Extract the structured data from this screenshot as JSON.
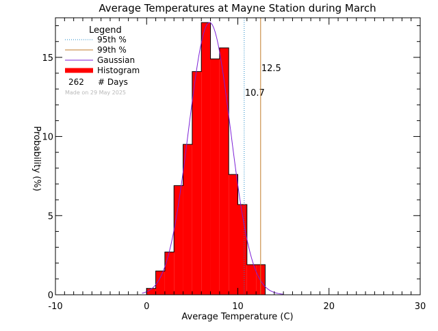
{
  "chart_data": {
    "type": "bar",
    "title": "Average Temperatures at Mayne Station during March",
    "xlabel": "Average Temperature (C)",
    "ylabel": "Probability (%)",
    "xlim": [
      -10,
      30
    ],
    "ylim": [
      0,
      17.5
    ],
    "x_ticks": [
      "-10",
      "0",
      "10",
      "20",
      "30"
    ],
    "y_ticks": [
      "0",
      "5",
      "10",
      "15"
    ],
    "bin_width": 1,
    "bins": [
      {
        "x0": 0,
        "value": 0.4
      },
      {
        "x0": 1,
        "value": 1.5
      },
      {
        "x0": 2,
        "value": 2.7
      },
      {
        "x0": 3,
        "value": 6.9
      },
      {
        "x0": 4,
        "value": 9.5
      },
      {
        "x0": 5,
        "value": 14.1
      },
      {
        "x0": 6,
        "value": 17.2
      },
      {
        "x0": 7,
        "value": 14.9
      },
      {
        "x0": 8,
        "value": 15.6
      },
      {
        "x0": 9,
        "value": 7.6
      },
      {
        "x0": 10,
        "value": 5.7
      },
      {
        "x0": 11,
        "value": 1.9
      },
      {
        "x0": 12,
        "value": 1.9
      }
    ],
    "gaussian": {
      "mean": 6.9,
      "sd": 2.3,
      "peak": 17.2
    },
    "percentiles": [
      {
        "label": "95th %",
        "value": 10.7,
        "value_label": "10.7",
        "color": "#1a86c7",
        "style": "dotted"
      },
      {
        "label": "99th %",
        "value": 12.5,
        "value_label": "12.5",
        "color": "#c27a28",
        "style": "solid"
      }
    ],
    "legend": {
      "title": "Legend",
      "placement": "top-left",
      "items": [
        {
          "label": "95th %",
          "color": "#1a86c7",
          "style": "dotted"
        },
        {
          "label": "99th %",
          "color": "#c27a28",
          "style": "solid"
        },
        {
          "label": "Gaussian",
          "color": "#7b1fd6",
          "style": "line"
        },
        {
          "label": "Histogram",
          "color": "#ff0000",
          "style": "thick"
        }
      ],
      "days_count": "262",
      "days_label": "# Days",
      "stamp": "Made on 29 May 2025"
    },
    "colors": {
      "bars": "#ff0000",
      "gaussian": "#7b1fd6",
      "axes": "#000000"
    },
    "grid": false
  }
}
